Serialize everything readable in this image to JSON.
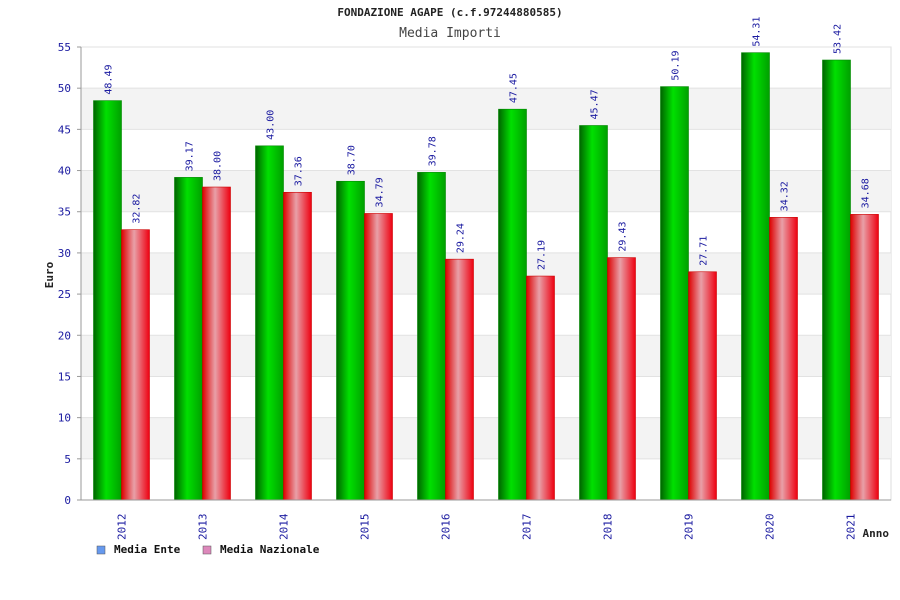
{
  "chart_data": {
    "type": "bar",
    "title": "FONDAZIONE AGAPE (c.f.97244880585)",
    "subtitle": "Media Importi",
    "xlabel": "Anno",
    "ylabel": "Euro",
    "ylim": [
      0,
      55
    ],
    "yticks": [
      0,
      5,
      10,
      15,
      20,
      25,
      30,
      35,
      40,
      45,
      50,
      55
    ],
    "grid": true,
    "legend_position": "bottom-left",
    "categories": [
      "2012",
      "2013",
      "2014",
      "2015",
      "2016",
      "2017",
      "2018",
      "2019",
      "2020",
      "2021"
    ],
    "series": [
      {
        "name": "Media Ente",
        "color": "#00b400",
        "legend_color": "#6699ee",
        "values": [
          48.49,
          39.17,
          43.0,
          38.7,
          39.78,
          47.45,
          45.47,
          50.19,
          54.31,
          53.42
        ],
        "labels": [
          "48.49",
          "39.17",
          "43.00",
          "38.70",
          "39.78",
          "47.45",
          "45.47",
          "50.19",
          "54.31",
          "53.42"
        ]
      },
      {
        "name": "Media Nazionale",
        "color": "#ee0000",
        "legend_color": "#dd88bb",
        "values": [
          32.82,
          38.0,
          37.36,
          34.79,
          29.24,
          27.19,
          29.43,
          27.71,
          34.32,
          34.68
        ],
        "labels": [
          "32.82",
          "38.00",
          "37.36",
          "34.79",
          "29.24",
          "27.19",
          "29.43",
          "27.71",
          "34.32",
          "34.68"
        ]
      }
    ]
  }
}
